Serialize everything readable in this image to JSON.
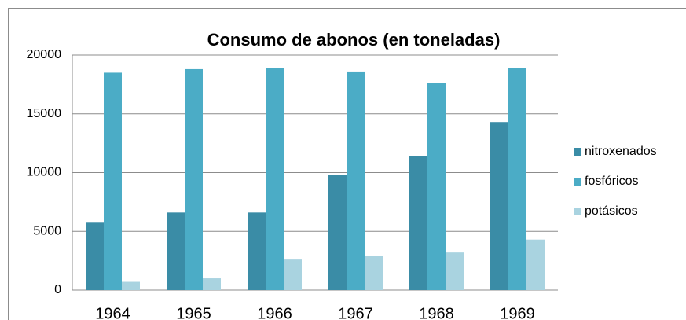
{
  "chart_data": {
    "type": "bar",
    "title": "Consumo de abonos (en toneladas)",
    "categories": [
      "1964",
      "1965",
      "1966",
      "1967",
      "1968",
      "1969"
    ],
    "series": [
      {
        "name": "nitroxenados",
        "color": "#3a8ca6",
        "values": [
          5800,
          6600,
          6600,
          9800,
          11400,
          14300
        ]
      },
      {
        "name": "fosfóricos",
        "color": "#4bacc6",
        "values": [
          18500,
          18800,
          18900,
          18600,
          17600,
          18900
        ]
      },
      {
        "name": "potásicos",
        "color": "#a9d3e0",
        "values": [
          700,
          1000,
          2600,
          2900,
          3200,
          4300
        ]
      }
    ],
    "ylim": [
      0,
      20000
    ],
    "yticks": [
      0,
      5000,
      10000,
      15000,
      20000
    ],
    "grid": true,
    "legend": "right"
  }
}
